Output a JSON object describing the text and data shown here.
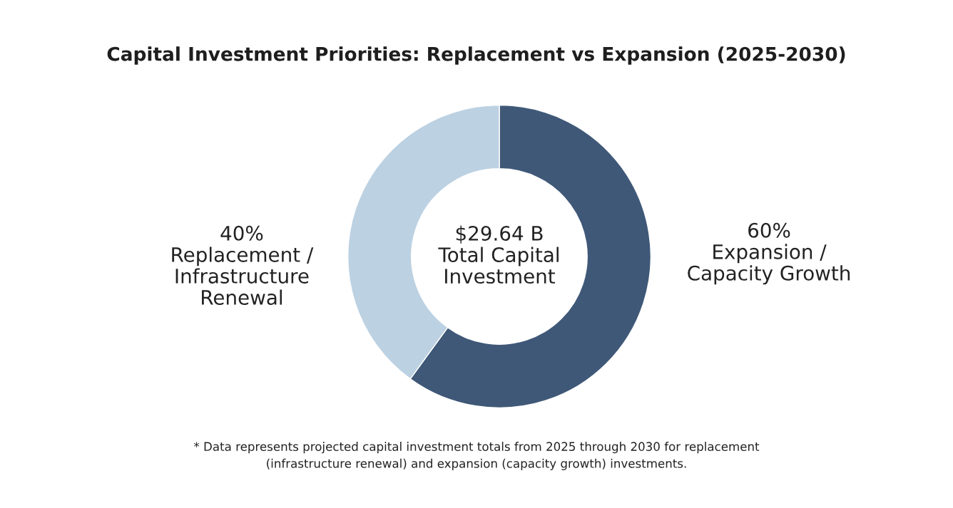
{
  "chart_data": {
    "type": "donut",
    "title": "Capital Investment Priorities: Replacement vs Expansion (2025-2030)",
    "categories": [
      "Expansion /\nCapacity Growth",
      "Replacement /\nInfrastructure\nRenewal"
    ],
    "values": [
      60,
      40
    ],
    "value_labels": [
      "60%",
      "40%"
    ],
    "colors": [
      "#3f5878",
      "#bcd1e2"
    ],
    "annotations": [
      "$29.64 B\nTotal Capital\nInvestment",
      "* Data represents projected capital investment totals from 2025 through 2030 for replacement\n(infrastructure renewal) and expansion (capacity growth) investments."
    ],
    "legend": false
  }
}
